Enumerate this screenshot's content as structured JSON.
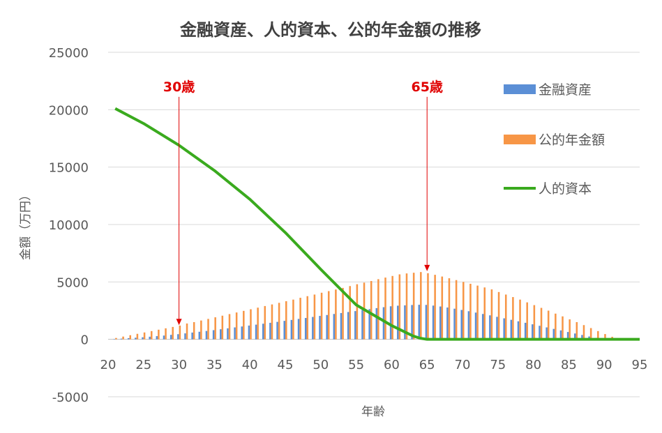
{
  "chart_data": {
    "type": "bar",
    "title": "金融資産、人的資本、公的年金額の推移",
    "xlabel": "年齢",
    "ylabel": "金額（万円）",
    "xlim": [
      20,
      95
    ],
    "ylim": [
      -5000,
      25000
    ],
    "x_ticks": [
      "20",
      "25",
      "30",
      "35",
      "40",
      "45",
      "50",
      "55",
      "60",
      "65",
      "70",
      "75",
      "80",
      "85",
      "90",
      "95"
    ],
    "y_ticks": [
      "-5000",
      "0",
      "5000",
      "10000",
      "15000",
      "20000",
      "25000"
    ],
    "grid": true,
    "legend_position": "right",
    "x": [
      21,
      22,
      23,
      24,
      25,
      26,
      27,
      28,
      29,
      30,
      31,
      32,
      33,
      34,
      35,
      36,
      37,
      38,
      39,
      40,
      41,
      42,
      43,
      44,
      45,
      46,
      47,
      48,
      49,
      50,
      51,
      52,
      53,
      54,
      55,
      56,
      57,
      58,
      59,
      60,
      61,
      62,
      63,
      64,
      65,
      66,
      67,
      68,
      69,
      70,
      71,
      72,
      73,
      74,
      75,
      76,
      77,
      78,
      79,
      80,
      81,
      82,
      83,
      84,
      85,
      86,
      87,
      88,
      89,
      90,
      91,
      92,
      93,
      94
    ],
    "series": [
      {
        "name": "金融資産",
        "kind": "bar",
        "color": "#5b8fd6",
        "values": [
          30,
          60,
          100,
          140,
          180,
          230,
          280,
          330,
          390,
          450,
          520,
          590,
          660,
          730,
          800,
          880,
          960,
          1040,
          1120,
          1200,
          1280,
          1360,
          1440,
          1520,
          1610,
          1690,
          1780,
          1860,
          1950,
          2040,
          2120,
          2210,
          2290,
          2380,
          2460,
          2550,
          2630,
          2720,
          2800,
          2880,
          2930,
          2960,
          2990,
          3010,
          3000,
          2940,
          2860,
          2770,
          2670,
          2560,
          2450,
          2330,
          2210,
          2090,
          1960,
          1830,
          1700,
          1570,
          1440,
          1310,
          1180,
          1040,
          910,
          780,
          640,
          510,
          380,
          250,
          120,
          40,
          10,
          0,
          0,
          0
        ],
        "color_hex": "#5b8fd6"
      },
      {
        "name": "公的年金額",
        "kind": "bar",
        "color": "#f79646",
        "values": [
          120,
          240,
          360,
          480,
          600,
          720,
          840,
          960,
          1080,
          1200,
          1380,
          1500,
          1640,
          1780,
          1920,
          2060,
          2200,
          2340,
          2480,
          2620,
          2760,
          2900,
          3040,
          3180,
          3320,
          3460,
          3620,
          3760,
          3900,
          4060,
          4200,
          4340,
          4480,
          4640,
          4800,
          4940,
          5080,
          5240,
          5380,
          5520,
          5660,
          5740,
          5800,
          5860,
          5760,
          5620,
          5470,
          5320,
          5160,
          5000,
          4840,
          4680,
          4520,
          4350,
          4120,
          3900,
          3680,
          3460,
          3220,
          2980,
          2740,
          2500,
          2240,
          2000,
          1740,
          1500,
          1240,
          980,
          720,
          460,
          220,
          0,
          0,
          0
        ],
        "color_hex": "#f79646"
      },
      {
        "name": "人的資本",
        "kind": "line",
        "color": "#3aaa1e",
        "x": [
          21,
          25,
          30,
          35,
          40,
          45,
          50,
          55,
          60,
          61,
          62,
          63,
          64,
          65,
          70,
          75,
          80,
          85,
          90,
          95
        ],
        "values": [
          20100,
          18800,
          16900,
          14700,
          12200,
          9300,
          6100,
          3000,
          1200,
          900,
          600,
          300,
          100,
          0,
          0,
          0,
          0,
          0,
          0,
          0
        ]
      }
    ],
    "annotations": [
      {
        "label": "30歳",
        "x": 30,
        "y_from": 21000,
        "y_to": 1300,
        "color": "#e00000"
      },
      {
        "label": "65歳",
        "x": 65,
        "y_from": 21000,
        "y_to": 6000,
        "color": "#e00000"
      }
    ]
  }
}
